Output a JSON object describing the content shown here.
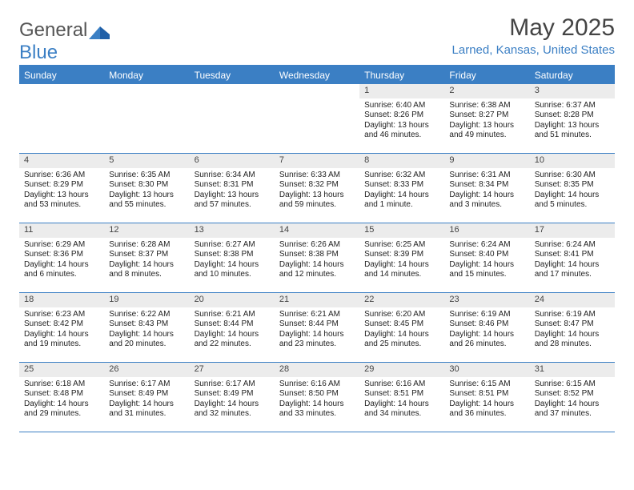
{
  "logo": {
    "text1": "General",
    "text2": "Blue"
  },
  "title": "May 2025",
  "location": "Larned, Kansas, United States",
  "colors": {
    "accent": "#3b7fc4",
    "header_bg": "#3b7fc4",
    "num_bg": "#ececec"
  },
  "day_names": [
    "Sunday",
    "Monday",
    "Tuesday",
    "Wednesday",
    "Thursday",
    "Friday",
    "Saturday"
  ],
  "weeks": [
    [
      {
        "n": "",
        "empty": true
      },
      {
        "n": "",
        "empty": true
      },
      {
        "n": "",
        "empty": true
      },
      {
        "n": "",
        "empty": true
      },
      {
        "n": "1",
        "sr": "Sunrise: 6:40 AM",
        "ss": "Sunset: 8:26 PM",
        "d1": "Daylight: 13 hours",
        "d2": "and 46 minutes."
      },
      {
        "n": "2",
        "sr": "Sunrise: 6:38 AM",
        "ss": "Sunset: 8:27 PM",
        "d1": "Daylight: 13 hours",
        "d2": "and 49 minutes."
      },
      {
        "n": "3",
        "sr": "Sunrise: 6:37 AM",
        "ss": "Sunset: 8:28 PM",
        "d1": "Daylight: 13 hours",
        "d2": "and 51 minutes."
      }
    ],
    [
      {
        "n": "4",
        "sr": "Sunrise: 6:36 AM",
        "ss": "Sunset: 8:29 PM",
        "d1": "Daylight: 13 hours",
        "d2": "and 53 minutes."
      },
      {
        "n": "5",
        "sr": "Sunrise: 6:35 AM",
        "ss": "Sunset: 8:30 PM",
        "d1": "Daylight: 13 hours",
        "d2": "and 55 minutes."
      },
      {
        "n": "6",
        "sr": "Sunrise: 6:34 AM",
        "ss": "Sunset: 8:31 PM",
        "d1": "Daylight: 13 hours",
        "d2": "and 57 minutes."
      },
      {
        "n": "7",
        "sr": "Sunrise: 6:33 AM",
        "ss": "Sunset: 8:32 PM",
        "d1": "Daylight: 13 hours",
        "d2": "and 59 minutes."
      },
      {
        "n": "8",
        "sr": "Sunrise: 6:32 AM",
        "ss": "Sunset: 8:33 PM",
        "d1": "Daylight: 14 hours",
        "d2": "and 1 minute."
      },
      {
        "n": "9",
        "sr": "Sunrise: 6:31 AM",
        "ss": "Sunset: 8:34 PM",
        "d1": "Daylight: 14 hours",
        "d2": "and 3 minutes."
      },
      {
        "n": "10",
        "sr": "Sunrise: 6:30 AM",
        "ss": "Sunset: 8:35 PM",
        "d1": "Daylight: 14 hours",
        "d2": "and 5 minutes."
      }
    ],
    [
      {
        "n": "11",
        "sr": "Sunrise: 6:29 AM",
        "ss": "Sunset: 8:36 PM",
        "d1": "Daylight: 14 hours",
        "d2": "and 6 minutes."
      },
      {
        "n": "12",
        "sr": "Sunrise: 6:28 AM",
        "ss": "Sunset: 8:37 PM",
        "d1": "Daylight: 14 hours",
        "d2": "and 8 minutes."
      },
      {
        "n": "13",
        "sr": "Sunrise: 6:27 AM",
        "ss": "Sunset: 8:38 PM",
        "d1": "Daylight: 14 hours",
        "d2": "and 10 minutes."
      },
      {
        "n": "14",
        "sr": "Sunrise: 6:26 AM",
        "ss": "Sunset: 8:38 PM",
        "d1": "Daylight: 14 hours",
        "d2": "and 12 minutes."
      },
      {
        "n": "15",
        "sr": "Sunrise: 6:25 AM",
        "ss": "Sunset: 8:39 PM",
        "d1": "Daylight: 14 hours",
        "d2": "and 14 minutes."
      },
      {
        "n": "16",
        "sr": "Sunrise: 6:24 AM",
        "ss": "Sunset: 8:40 PM",
        "d1": "Daylight: 14 hours",
        "d2": "and 15 minutes."
      },
      {
        "n": "17",
        "sr": "Sunrise: 6:24 AM",
        "ss": "Sunset: 8:41 PM",
        "d1": "Daylight: 14 hours",
        "d2": "and 17 minutes."
      }
    ],
    [
      {
        "n": "18",
        "sr": "Sunrise: 6:23 AM",
        "ss": "Sunset: 8:42 PM",
        "d1": "Daylight: 14 hours",
        "d2": "and 19 minutes."
      },
      {
        "n": "19",
        "sr": "Sunrise: 6:22 AM",
        "ss": "Sunset: 8:43 PM",
        "d1": "Daylight: 14 hours",
        "d2": "and 20 minutes."
      },
      {
        "n": "20",
        "sr": "Sunrise: 6:21 AM",
        "ss": "Sunset: 8:44 PM",
        "d1": "Daylight: 14 hours",
        "d2": "and 22 minutes."
      },
      {
        "n": "21",
        "sr": "Sunrise: 6:21 AM",
        "ss": "Sunset: 8:44 PM",
        "d1": "Daylight: 14 hours",
        "d2": "and 23 minutes."
      },
      {
        "n": "22",
        "sr": "Sunrise: 6:20 AM",
        "ss": "Sunset: 8:45 PM",
        "d1": "Daylight: 14 hours",
        "d2": "and 25 minutes."
      },
      {
        "n": "23",
        "sr": "Sunrise: 6:19 AM",
        "ss": "Sunset: 8:46 PM",
        "d1": "Daylight: 14 hours",
        "d2": "and 26 minutes."
      },
      {
        "n": "24",
        "sr": "Sunrise: 6:19 AM",
        "ss": "Sunset: 8:47 PM",
        "d1": "Daylight: 14 hours",
        "d2": "and 28 minutes."
      }
    ],
    [
      {
        "n": "25",
        "sr": "Sunrise: 6:18 AM",
        "ss": "Sunset: 8:48 PM",
        "d1": "Daylight: 14 hours",
        "d2": "and 29 minutes."
      },
      {
        "n": "26",
        "sr": "Sunrise: 6:17 AM",
        "ss": "Sunset: 8:49 PM",
        "d1": "Daylight: 14 hours",
        "d2": "and 31 minutes."
      },
      {
        "n": "27",
        "sr": "Sunrise: 6:17 AM",
        "ss": "Sunset: 8:49 PM",
        "d1": "Daylight: 14 hours",
        "d2": "and 32 minutes."
      },
      {
        "n": "28",
        "sr": "Sunrise: 6:16 AM",
        "ss": "Sunset: 8:50 PM",
        "d1": "Daylight: 14 hours",
        "d2": "and 33 minutes."
      },
      {
        "n": "29",
        "sr": "Sunrise: 6:16 AM",
        "ss": "Sunset: 8:51 PM",
        "d1": "Daylight: 14 hours",
        "d2": "and 34 minutes."
      },
      {
        "n": "30",
        "sr": "Sunrise: 6:15 AM",
        "ss": "Sunset: 8:51 PM",
        "d1": "Daylight: 14 hours",
        "d2": "and 36 minutes."
      },
      {
        "n": "31",
        "sr": "Sunrise: 6:15 AM",
        "ss": "Sunset: 8:52 PM",
        "d1": "Daylight: 14 hours",
        "d2": "and 37 minutes."
      }
    ]
  ]
}
